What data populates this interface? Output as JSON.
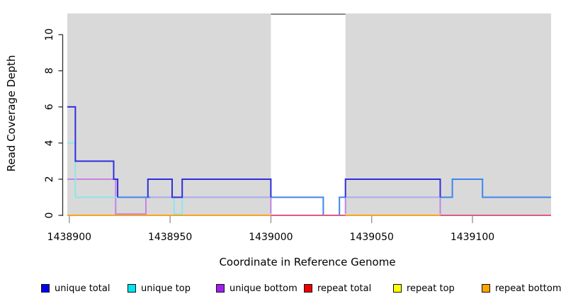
{
  "chart_data": {
    "type": "line",
    "subtype": "step-coverage",
    "title": "",
    "xlabel": "Coordinate in Reference Genome",
    "ylabel": "Read Coverage Depth",
    "xlim": [
      1438899,
      1439139
    ],
    "ylim": [
      0,
      11.15
    ],
    "x_ticks": [
      1438900,
      1438950,
      1439000,
      1439050,
      1439100
    ],
    "y_ticks": [
      0,
      2,
      4,
      6,
      8,
      10
    ],
    "grid": false,
    "legend_position": "bottom",
    "shaded_color": "#D9D9D9",
    "shaded_regions": [
      {
        "x0": 1438899,
        "x1": 1439000
      },
      {
        "x0": 1439037,
        "x1": 1439139
      }
    ],
    "gap_top_rule": {
      "x0": 1439000,
      "x1": 1439037,
      "color": "#8A8A8A"
    },
    "legend": [
      {
        "label": "unique total",
        "color": "#0000EE"
      },
      {
        "label": "unique top",
        "color": "#00E5EE"
      },
      {
        "label": "unique bottom",
        "color": "#A020F0"
      },
      {
        "label": "repeat total",
        "color": "#EE0000"
      },
      {
        "label": "repeat top",
        "color": "#FFFF00"
      },
      {
        "label": "repeat bottom",
        "color": "#FFA500"
      }
    ],
    "series": [
      {
        "name": "unique total",
        "color": "#0000EE",
        "steps": [
          [
            1438899,
            6
          ],
          [
            1438903,
            3
          ],
          [
            1438922,
            2
          ],
          [
            1438924,
            1
          ],
          [
            1438939,
            2
          ],
          [
            1438951,
            1
          ],
          [
            1438956,
            2
          ],
          [
            1439000,
            1
          ],
          [
            1439026,
            0
          ],
          [
            1439034,
            1
          ],
          [
            1439038,
            2
          ],
          [
            1439084,
            1
          ],
          [
            1439090,
            2
          ],
          [
            1439105,
            1
          ],
          [
            1439139,
            1
          ]
        ]
      },
      {
        "name": "unique top",
        "color": "#00E5EE",
        "steps": [
          [
            1438899,
            4
          ],
          [
            1438903,
            1
          ],
          [
            1438952,
            0
          ],
          [
            1438956,
            1
          ],
          [
            1439026,
            0
          ],
          [
            1439034,
            1
          ],
          [
            1439090,
            2
          ],
          [
            1439105,
            1
          ],
          [
            1439139,
            1
          ]
        ]
      },
      {
        "name": "unique bottom",
        "color": "#A020F0",
        "steps": [
          [
            1438899,
            2
          ],
          [
            1438923,
            0
          ],
          [
            1438938,
            1
          ],
          [
            1439000,
            0
          ],
          [
            1439037,
            1
          ],
          [
            1439084,
            0
          ],
          [
            1439139,
            0
          ]
        ]
      },
      {
        "name": "repeat total",
        "color": "#EE0000",
        "steps": [
          [
            1438899,
            0
          ],
          [
            1439139,
            0
          ]
        ]
      },
      {
        "name": "repeat top",
        "color": "#FFFF00",
        "steps": [
          [
            1438899,
            0
          ],
          [
            1439139,
            0
          ]
        ]
      },
      {
        "name": "repeat bottom",
        "color": "#FFA500",
        "steps": [
          [
            1438899,
            0
          ],
          [
            1439139,
            0
          ]
        ]
      }
    ],
    "rendered_segments": [
      {
        "color": "#C583E4",
        "pts": [
          [
            1438899,
            2
          ],
          [
            1438923,
            2
          ],
          [
            1438923,
            0.07
          ],
          [
            1438938,
            0.07
          ],
          [
            1438938,
            1
          ]
        ]
      },
      {
        "color": "#C583E4",
        "pts": [
          [
            1439000,
            1
          ],
          [
            1439000,
            0.07
          ]
        ]
      },
      {
        "color": "#C583E4",
        "pts": [
          [
            1439037,
            0.07
          ],
          [
            1439037,
            1
          ]
        ]
      },
      {
        "color": "#C583E4",
        "pts": [
          [
            1439084,
            1
          ],
          [
            1439084,
            0.07
          ]
        ]
      },
      {
        "color": "#8DE7EA",
        "pts": [
          [
            1438899,
            4
          ],
          [
            1438903,
            4
          ],
          [
            1438903,
            1
          ],
          [
            1438924,
            1
          ]
        ]
      },
      {
        "color": "#8DE7EA",
        "pts": [
          [
            1438952,
            1
          ],
          [
            1438952,
            0.07
          ],
          [
            1438956,
            0.07
          ],
          [
            1438956,
            1
          ]
        ]
      },
      {
        "color": "#A6ABEF",
        "pts": [
          [
            1438939,
            1
          ],
          [
            1439000,
            1
          ]
        ]
      },
      {
        "color": "#A6ABEF",
        "pts": [
          [
            1439037,
            1
          ],
          [
            1439084,
            1
          ]
        ]
      },
      {
        "color": "#3D86EE",
        "pts": [
          [
            1438924,
            1
          ],
          [
            1438940,
            1
          ]
        ]
      },
      {
        "color": "#3D86EE",
        "pts": [
          [
            1439000,
            1
          ],
          [
            1439026,
            1
          ],
          [
            1439026,
            0
          ],
          [
            1439034,
            0
          ],
          [
            1439034,
            1
          ],
          [
            1439037,
            1
          ]
        ]
      },
      {
        "color": "#3D86EE",
        "pts": [
          [
            1439084,
            1
          ],
          [
            1439090,
            1
          ],
          [
            1439090,
            2
          ],
          [
            1439105,
            2
          ],
          [
            1439105,
            1
          ],
          [
            1439139,
            1
          ]
        ]
      },
      {
        "color": "#2E2EE0",
        "pts": [
          [
            1438899,
            6
          ],
          [
            1438903,
            6
          ],
          [
            1438903,
            3
          ],
          [
            1438922,
            3
          ],
          [
            1438922,
            2
          ],
          [
            1438924,
            2
          ],
          [
            1438924,
            1
          ]
        ]
      },
      {
        "color": "#2E2EE0",
        "pts": [
          [
            1438939,
            1
          ],
          [
            1438939,
            2
          ],
          [
            1438951,
            2
          ],
          [
            1438951,
            1
          ],
          [
            1438956,
            1
          ],
          [
            1438956,
            2
          ],
          [
            1439000,
            2
          ],
          [
            1439000,
            1
          ]
        ]
      },
      {
        "color": "#2E2EE0",
        "pts": [
          [
            1439037,
            1
          ],
          [
            1439037,
            2
          ],
          [
            1439084,
            2
          ],
          [
            1439084,
            1
          ]
        ]
      },
      {
        "color": "#DC5A88",
        "pts": [
          [
            1439000,
            0
          ],
          [
            1439037,
            0
          ]
        ]
      },
      {
        "color": "#DC5A88",
        "pts": [
          [
            1439084,
            0
          ],
          [
            1439139,
            0
          ]
        ]
      },
      {
        "color": "#FFA11E",
        "pts": [
          [
            1438899,
            0
          ],
          [
            1439000,
            0
          ]
        ]
      },
      {
        "color": "#FFA11E",
        "pts": [
          [
            1439037,
            0
          ],
          [
            1439084,
            0
          ]
        ]
      }
    ]
  }
}
